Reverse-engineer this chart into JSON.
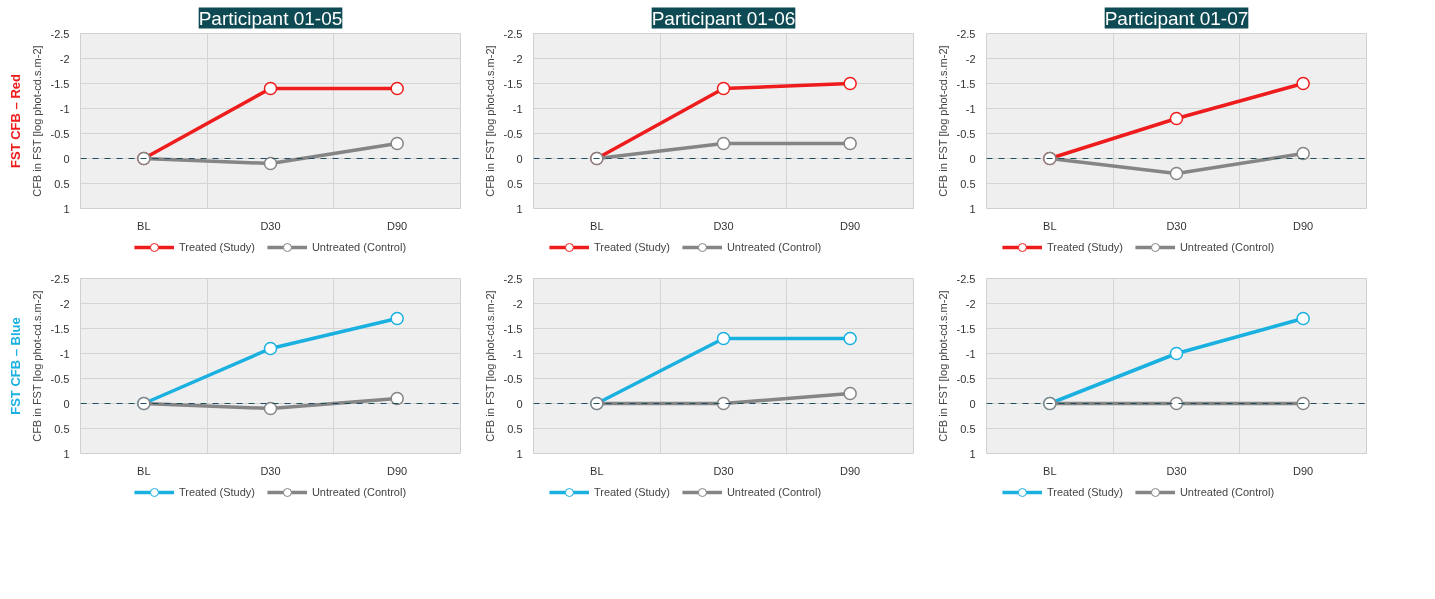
{
  "chart_data": [
    {
      "type": "line",
      "title": "Participant 01-05",
      "ylabel": "CFB in FST [log phot-cd.s.m-2]",
      "annotations": [
        "FST CFB – Red"
      ],
      "categories": [
        "BL",
        "D30",
        "D90"
      ],
      "series": [
        {
          "name": "Treated (Study)",
          "color": "#ee1c1c",
          "values": [
            0,
            -1.4,
            -1.4
          ]
        },
        {
          "name": "Untreated (Control)",
          "color": "#858585",
          "values": [
            0,
            0.1,
            -0.3
          ]
        }
      ],
      "ylim": [
        1,
        -2.5
      ],
      "yticks": [
        -2.5,
        -2,
        -1.5,
        -1,
        -0.5,
        0,
        0.5,
        1
      ],
      "ref_lines": [
        {
          "axis": "y",
          "value": 0,
          "color": "#1f4e5f",
          "line_style": "dashed"
        }
      ],
      "grid": true,
      "legend": "bottom",
      "marker": "circle",
      "line_style": "solid"
    },
    {
      "type": "line",
      "title": "Participant 01-06",
      "ylabel": "CFB in FST [log phot-cd.s.m-2]",
      "categories": [
        "BL",
        "D30",
        "D90"
      ],
      "series": [
        {
          "name": "Treated (Study)",
          "color": "#ee1c1c",
          "values": [
            0,
            -1.4,
            -1.5
          ]
        },
        {
          "name": "Untreated (Control)",
          "color": "#858585",
          "values": [
            0,
            -0.3,
            -0.3
          ]
        }
      ],
      "ylim": [
        1,
        -2.5
      ],
      "yticks": [
        -2.5,
        -2,
        -1.5,
        -1,
        -0.5,
        0,
        0.5,
        1
      ],
      "ref_lines": [
        {
          "axis": "y",
          "value": 0,
          "color": "#1f4e5f",
          "line_style": "dashed"
        }
      ],
      "grid": true,
      "legend": "bottom",
      "marker": "circle",
      "line_style": "solid"
    },
    {
      "type": "line",
      "title": "Participant 01-07",
      "ylabel": "CFB in FST [log phot-cd.s.m-2]",
      "categories": [
        "BL",
        "D30",
        "D90"
      ],
      "series": [
        {
          "name": "Treated (Study)",
          "color": "#ee1c1c",
          "values": [
            0,
            -0.8,
            -1.5
          ]
        },
        {
          "name": "Untreated (Control)",
          "color": "#858585",
          "values": [
            0,
            0.3,
            -0.1
          ]
        }
      ],
      "ylim": [
        1,
        -2.5
      ],
      "yticks": [
        -2.5,
        -2,
        -1.5,
        -1,
        -0.5,
        0,
        0.5,
        1
      ],
      "ref_lines": [
        {
          "axis": "y",
          "value": 0,
          "color": "#1f4e5f",
          "line_style": "dashed"
        }
      ],
      "grid": true,
      "legend": "bottom",
      "marker": "circle",
      "line_style": "solid"
    },
    {
      "type": "line",
      "ylabel": "CFB in FST [log phot-cd.s.m-2]",
      "annotations": [
        "FST CFB – Blue"
      ],
      "categories": [
        "BL",
        "D30",
        "D90"
      ],
      "series": [
        {
          "name": "Treated (Study)",
          "color": "#1ab0e0",
          "values": [
            0,
            -1.1,
            -1.7
          ]
        },
        {
          "name": "Untreated (Control)",
          "color": "#858585",
          "values": [
            0,
            0.1,
            -0.1
          ]
        }
      ],
      "ylim": [
        1,
        -2.5
      ],
      "yticks": [
        -2.5,
        -2,
        -1.5,
        -1,
        -0.5,
        0,
        0.5,
        1
      ],
      "ref_lines": [
        {
          "axis": "y",
          "value": 0,
          "color": "#1f4e5f",
          "line_style": "dashed"
        }
      ],
      "grid": true,
      "legend": "bottom",
      "marker": "circle",
      "line_style": "solid"
    },
    {
      "type": "line",
      "ylabel": "CFB in FST [log phot-cd.s.m-2]",
      "categories": [
        "BL",
        "D30",
        "D90"
      ],
      "series": [
        {
          "name": "Treated (Study)",
          "color": "#1ab0e0",
          "values": [
            0,
            -1.3,
            -1.3
          ]
        },
        {
          "name": "Untreated (Control)",
          "color": "#858585",
          "values": [
            0,
            0,
            -0.2
          ]
        }
      ],
      "ylim": [
        1,
        -2.5
      ],
      "yticks": [
        -2.5,
        -2,
        -1.5,
        -1,
        -0.5,
        0,
        0.5,
        1
      ],
      "ref_lines": [
        {
          "axis": "y",
          "value": 0,
          "color": "#1f4e5f",
          "line_style": "dashed"
        }
      ],
      "grid": true,
      "legend": "bottom",
      "marker": "circle",
      "line_style": "solid"
    },
    {
      "type": "line",
      "ylabel": "CFB in FST [log phot-cd.s.m-2]",
      "categories": [
        "BL",
        "D30",
        "D90"
      ],
      "series": [
        {
          "name": "Treated (Study)",
          "color": "#1ab0e0",
          "values": [
            0,
            -1.0,
            -1.7
          ]
        },
        {
          "name": "Untreated (Control)",
          "color": "#858585",
          "values": [
            0,
            0,
            0
          ]
        }
      ],
      "ylim": [
        1,
        -2.5
      ],
      "yticks": [
        -2.5,
        -2,
        -1.5,
        -1,
        -0.5,
        0,
        0.5,
        1
      ],
      "ref_lines": [
        {
          "axis": "y",
          "value": 0,
          "color": "#1f4e5f",
          "line_style": "dashed"
        }
      ],
      "grid": true,
      "legend": "bottom",
      "marker": "circle",
      "line_style": "solid"
    }
  ]
}
